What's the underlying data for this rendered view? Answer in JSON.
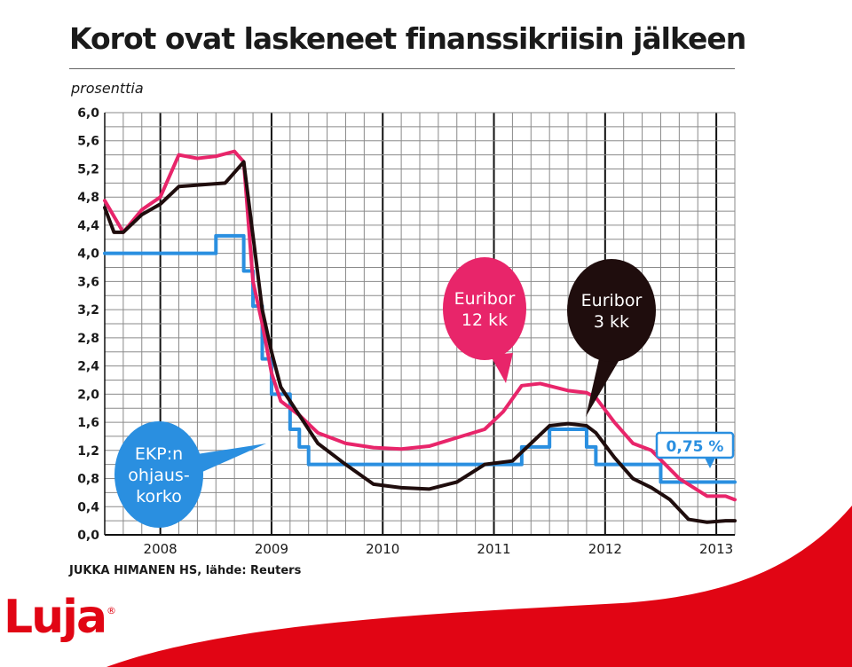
{
  "chart_data": {
    "type": "line",
    "title": "Korot ovat laskeneet finanssikriisin jälkeen",
    "unit_label": "prosenttia",
    "x_ticks": [
      "2008",
      "2009",
      "2010",
      "2011",
      "2012",
      "2013"
    ],
    "xlim": [
      "2007-07",
      "2013-03"
    ],
    "y_ticks": [
      "6,0",
      "5,6",
      "5,2",
      "4,8",
      "4,4",
      "4,0",
      "3,6",
      "3,2",
      "2,8",
      "2,4",
      "2,0",
      "1,6",
      "1,2",
      "0,8",
      "0,4",
      "0,0"
    ],
    "ylim": [
      0,
      6
    ],
    "grid": true,
    "series": [
      {
        "name": "Euribor 12 kk",
        "color": "#e8256a",
        "points": [
          [
            "2007-07",
            4.75
          ],
          [
            "2007-09",
            4.3
          ],
          [
            "2007-11",
            4.62
          ],
          [
            "2008-01",
            4.8
          ],
          [
            "2008-03",
            5.4
          ],
          [
            "2008-05",
            5.35
          ],
          [
            "2008-07",
            5.38
          ],
          [
            "2008-09",
            5.45
          ],
          [
            "2008-10",
            5.3
          ],
          [
            "2008-11",
            3.6
          ],
          [
            "2008-12",
            3.0
          ],
          [
            "2009-01",
            2.3
          ],
          [
            "2009-02",
            1.9
          ],
          [
            "2009-04",
            1.7
          ],
          [
            "2009-06",
            1.45
          ],
          [
            "2009-09",
            1.3
          ],
          [
            "2009-12",
            1.24
          ],
          [
            "2010-03",
            1.22
          ],
          [
            "2010-06",
            1.26
          ],
          [
            "2010-09",
            1.38
          ],
          [
            "2010-12",
            1.5
          ],
          [
            "2011-02",
            1.75
          ],
          [
            "2011-04",
            2.12
          ],
          [
            "2011-06",
            2.15
          ],
          [
            "2011-09",
            2.05
          ],
          [
            "2011-11",
            2.02
          ],
          [
            "2011-12",
            1.95
          ],
          [
            "2012-02",
            1.6
          ],
          [
            "2012-04",
            1.3
          ],
          [
            "2012-06",
            1.2
          ],
          [
            "2012-09",
            0.8
          ],
          [
            "2012-12",
            0.55
          ],
          [
            "2013-02",
            0.55
          ],
          [
            "2013-03",
            0.5
          ]
        ]
      },
      {
        "name": "Euribor 3 kk",
        "color": "#1f0d0d",
        "points": [
          [
            "2007-07",
            4.65
          ],
          [
            "2007-08",
            4.3
          ],
          [
            "2007-09",
            4.3
          ],
          [
            "2007-11",
            4.55
          ],
          [
            "2008-01",
            4.7
          ],
          [
            "2008-03",
            4.95
          ],
          [
            "2008-06",
            4.98
          ],
          [
            "2008-08",
            5.0
          ],
          [
            "2008-10",
            5.3
          ],
          [
            "2008-12",
            3.2
          ],
          [
            "2009-01",
            2.6
          ],
          [
            "2009-02",
            2.1
          ],
          [
            "2009-04",
            1.7
          ],
          [
            "2009-06",
            1.3
          ],
          [
            "2009-09",
            1.0
          ],
          [
            "2009-12",
            0.72
          ],
          [
            "2010-03",
            0.67
          ],
          [
            "2010-06",
            0.65
          ],
          [
            "2010-09",
            0.75
          ],
          [
            "2010-12",
            1.0
          ],
          [
            "2011-03",
            1.05
          ],
          [
            "2011-05",
            1.3
          ],
          [
            "2011-07",
            1.55
          ],
          [
            "2011-09",
            1.58
          ],
          [
            "2011-11",
            1.55
          ],
          [
            "2011-12",
            1.45
          ],
          [
            "2012-02",
            1.1
          ],
          [
            "2012-04",
            0.8
          ],
          [
            "2012-06",
            0.67
          ],
          [
            "2012-08",
            0.5
          ],
          [
            "2012-10",
            0.22
          ],
          [
            "2012-12",
            0.18
          ],
          [
            "2013-02",
            0.2
          ],
          [
            "2013-03",
            0.2
          ]
        ]
      },
      {
        "name": "EKP:n ohjauskorko",
        "color": "#2a8fe0",
        "step": true,
        "points": [
          [
            "2007-07",
            4.0
          ],
          [
            "2008-07",
            4.25
          ],
          [
            "2008-10",
            3.75
          ],
          [
            "2008-11",
            3.25
          ],
          [
            "2008-12",
            2.5
          ],
          [
            "2009-01",
            2.0
          ],
          [
            "2009-03",
            1.5
          ],
          [
            "2009-04",
            1.25
          ],
          [
            "2009-05",
            1.0
          ],
          [
            "2011-04",
            1.25
          ],
          [
            "2011-07",
            1.5
          ],
          [
            "2011-11",
            1.25
          ],
          [
            "2011-12",
            1.0
          ],
          [
            "2012-07",
            0.75
          ],
          [
            "2013-03",
            0.75
          ]
        ]
      }
    ],
    "callouts": [
      {
        "line1": "Euribor",
        "line2": "12 kk",
        "series": "Euribor 12 kk"
      },
      {
        "line1": "Euribor",
        "line2": "3 kk",
        "series": "Euribor 3 kk"
      },
      {
        "line1": "EKP:n",
        "line2": "ohjaus-",
        "line3": "korko",
        "series": "EKP:n ohjauskorko"
      }
    ],
    "value_label": "0,75 %",
    "credit": "JUKKA HIMANEN HS, lähde: Reuters"
  },
  "brand": {
    "logo_text": "Luja",
    "registered": "®",
    "color": "#e10514"
  }
}
